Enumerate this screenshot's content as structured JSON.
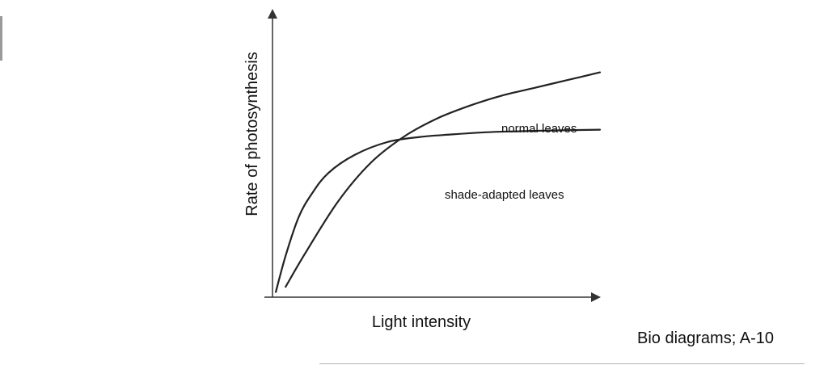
{
  "caption": "Bio diagrams; A-10",
  "chart_data": {
    "type": "line",
    "title": "",
    "xlabel": "Light intensity",
    "ylabel": "Rate of photosynthesis",
    "xlim": [
      0,
      100
    ],
    "ylim": [
      0,
      100
    ],
    "grid": false,
    "legend": "inline labels at right end of curves",
    "series": [
      {
        "name": "normal leaves",
        "color": "#222222",
        "x": [
          4,
          10,
          20,
          30,
          40,
          50,
          60,
          70,
          80,
          90,
          100
        ],
        "y": [
          4,
          17,
          37,
          52,
          62,
          69,
          74,
          78,
          81,
          84,
          87
        ]
      },
      {
        "name": "shade-adapted leaves",
        "color": "#222222",
        "x": [
          1,
          4,
          8,
          12,
          17,
          25,
          35,
          45,
          55,
          65,
          75,
          85,
          100
        ],
        "y": [
          2,
          16,
          31,
          40,
          48,
          55,
          60,
          62,
          63,
          63.8,
          64.2,
          64.5,
          64.8
        ]
      }
    ]
  }
}
